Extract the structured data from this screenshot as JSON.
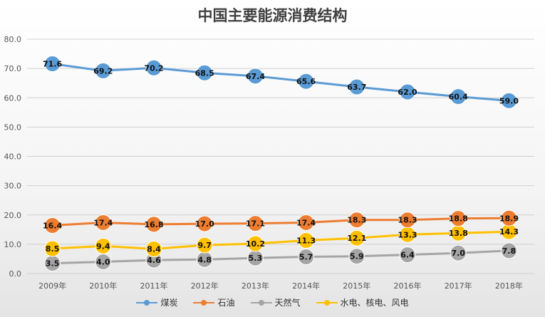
{
  "chart_data": {
    "type": "line",
    "title": "中国主要能源消费结构",
    "categories": [
      "2009年",
      "2010年",
      "2011年",
      "2012年",
      "2013年",
      "2014年",
      "2015年",
      "2016年",
      "2017年",
      "2018年"
    ],
    "ylim": [
      0,
      80
    ],
    "yticks": [
      "0.0",
      "10.0",
      "20.0",
      "30.0",
      "40.0",
      "50.0",
      "60.0",
      "70.0",
      "80.0"
    ],
    "grid": true,
    "legend_position": "bottom",
    "series": [
      {
        "name": "煤炭",
        "color": "#5b9bd5",
        "values": [
          71.6,
          69.2,
          70.2,
          68.5,
          67.4,
          65.6,
          63.7,
          62.0,
          60.4,
          59.0
        ],
        "labels": [
          "71.6",
          "69.2",
          "70.2",
          "68.5",
          "67.4",
          "65.6",
          "63.7",
          "62.0",
          "60.4",
          "59.0"
        ]
      },
      {
        "name": "石油",
        "color": "#ed7d31",
        "values": [
          16.4,
          17.4,
          16.8,
          17.0,
          17.1,
          17.4,
          18.3,
          18.3,
          18.8,
          18.9
        ],
        "labels": [
          "16.4",
          "17.4",
          "16.8",
          "17.0",
          "17.1",
          "17.4",
          "18.3",
          "18.3",
          "18.8",
          "18.9"
        ]
      },
      {
        "name": "天然气",
        "color": "#a5a5a5",
        "values": [
          3.5,
          4.0,
          4.6,
          4.8,
          5.3,
          5.7,
          5.9,
          6.4,
          7.0,
          7.8
        ],
        "labels": [
          "3.5",
          "4.0",
          "4.6",
          "4.8",
          "5.3",
          "5.7",
          "5.9",
          "6.4",
          "7.0",
          "7.8"
        ]
      },
      {
        "name": "水电、核电、风电",
        "color": "#ffc000",
        "values": [
          8.5,
          9.4,
          8.4,
          9.7,
          10.2,
          11.3,
          12.1,
          13.3,
          13.8,
          14.3
        ],
        "labels": [
          "8.5",
          "9.4",
          "8.4",
          "9.7",
          "10.2",
          "11.3",
          "12.1",
          "13.3",
          "13.8",
          "14.3"
        ]
      }
    ]
  }
}
